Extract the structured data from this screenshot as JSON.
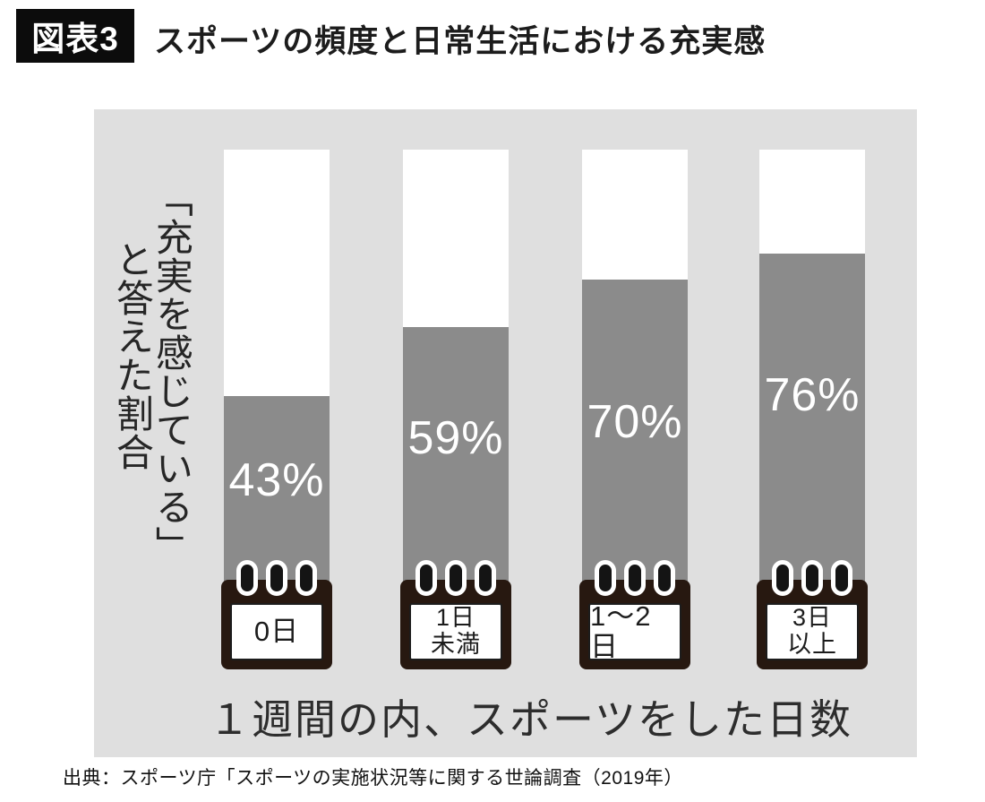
{
  "figure": {
    "badge": "図表3",
    "title": "スポーツの頻度と日常生活における充実感"
  },
  "chart_data": {
    "type": "bar",
    "title": "スポーツの頻度と日常生活における充実感",
    "categories": [
      "0日",
      "1日未満",
      "1〜2日",
      "3日以上"
    ],
    "values": [
      43,
      59,
      70,
      76
    ],
    "value_labels": [
      "43%",
      "59%",
      "70%",
      "76%"
    ],
    "category_lines": [
      [
        "0日",
        ""
      ],
      [
        "1日",
        "未満"
      ],
      [
        "1〜2日",
        ""
      ],
      [
        "3日",
        "以上"
      ]
    ],
    "xlabel": "１週間の内、スポーツをした日数",
    "ylabel": "「充実を感じている」と答えた割合",
    "ylabel_columns": [
      "「充実を感じている」",
      "と答えた割合"
    ],
    "unit": "%",
    "ylim": [
      0,
      100
    ],
    "grid": false,
    "legend": "none",
    "colors": {
      "bar_fill": "#8b8b8b",
      "bar_track": "#ffffff",
      "panel_background": "#dfdfdf",
      "calendar_frame": "#271810",
      "value_label_text": "#ffffff",
      "badge_background": "#0c0c0c"
    }
  },
  "source": "出典：スポーツ庁「スポーツの実施状況等に関する世論調査（2019年）"
}
